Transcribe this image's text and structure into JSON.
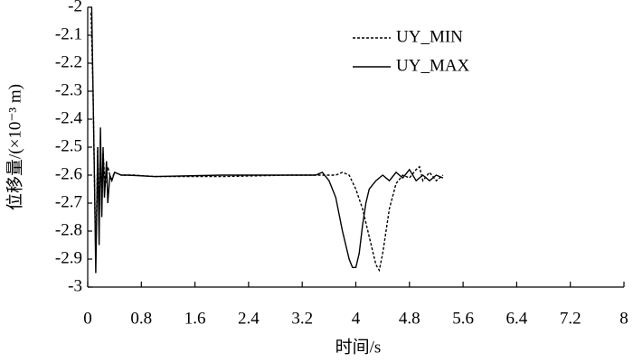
{
  "chart_data": {
    "type": "line",
    "xlabel": "时间/s",
    "ylabel": "位移量/(×10⁻³ m)",
    "xlim": [
      0,
      8
    ],
    "ylim": [
      -3,
      -2
    ],
    "xticks": [
      0,
      0.8,
      1.6,
      2.4,
      3.2,
      4,
      4.8,
      5.6,
      6.4,
      7.2,
      8
    ],
    "yticks": [
      -2,
      -2.1,
      -2.2,
      -2.3,
      -2.4,
      -2.5,
      -2.6,
      -2.7,
      -2.8,
      -2.9,
      -3
    ],
    "legend": "upper right",
    "series": [
      {
        "name": "UY_MIN",
        "color": "#000000",
        "dash": true,
        "x": [
          0.05,
          0.08,
          0.1,
          0.12,
          0.15,
          0.17,
          0.19,
          0.21,
          0.23,
          0.26,
          0.3,
          0.35,
          0.4,
          0.5,
          0.7,
          1.0,
          2.0,
          3.0,
          3.6,
          3.7,
          3.8,
          3.9,
          4.0,
          4.1,
          4.2,
          4.3,
          4.35,
          4.4,
          4.5,
          4.6,
          4.7,
          4.8,
          4.9,
          4.95,
          5.0,
          5.1,
          5.2,
          5.3
        ],
        "values": [
          -2.02,
          -2.3,
          -2.6,
          -2.9,
          -2.5,
          -2.78,
          -2.47,
          -2.72,
          -2.52,
          -2.64,
          -2.57,
          -2.62,
          -2.59,
          -2.6,
          -2.6,
          -2.605,
          -2.605,
          -2.6,
          -2.6,
          -2.6,
          -2.59,
          -2.6,
          -2.65,
          -2.72,
          -2.82,
          -2.92,
          -2.94,
          -2.88,
          -2.72,
          -2.63,
          -2.6,
          -2.61,
          -2.58,
          -2.57,
          -2.62,
          -2.59,
          -2.62,
          -2.6
        ]
      },
      {
        "name": "UY_MAX",
        "color": "#000000",
        "dash": false,
        "x": [
          0.06,
          0.08,
          0.1,
          0.12,
          0.15,
          0.17,
          0.19,
          0.21,
          0.23,
          0.25,
          0.28,
          0.3,
          0.33,
          0.36,
          0.4,
          0.5,
          0.6,
          1.0,
          2.0,
          3.0,
          3.4,
          3.5,
          3.6,
          3.7,
          3.8,
          3.9,
          3.95,
          4.0,
          4.05,
          4.1,
          4.15,
          4.2,
          4.3,
          4.4,
          4.5,
          4.6,
          4.7,
          4.8,
          4.9,
          5.0,
          5.1,
          5.2,
          5.3
        ],
        "values": [
          -2.0,
          -2.3,
          -2.6,
          -2.95,
          -2.5,
          -2.85,
          -2.43,
          -2.75,
          -2.5,
          -2.68,
          -2.55,
          -2.7,
          -2.6,
          -2.62,
          -2.59,
          -2.6,
          -2.6,
          -2.605,
          -2.6,
          -2.6,
          -2.6,
          -2.59,
          -2.62,
          -2.68,
          -2.8,
          -2.9,
          -2.93,
          -2.93,
          -2.88,
          -2.78,
          -2.7,
          -2.65,
          -2.62,
          -2.6,
          -2.62,
          -2.59,
          -2.61,
          -2.58,
          -2.62,
          -2.6,
          -2.62,
          -2.6,
          -2.61
        ]
      }
    ]
  }
}
